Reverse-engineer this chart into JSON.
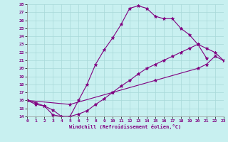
{
  "xlabel": "Windchill (Refroidissement éolien,°C)",
  "bg_color": "#c8f0f0",
  "line_color": "#800080",
  "grid_color": "#a8d8d8",
  "xmin": 0,
  "xmax": 23,
  "ymin": 14,
  "ymax": 28,
  "line1_x": [
    0,
    1,
    2,
    3,
    4,
    5,
    6,
    7,
    8,
    9,
    10,
    11,
    12,
    13,
    14,
    15,
    16,
    17,
    18,
    19,
    20,
    21
  ],
  "line1_y": [
    16.0,
    15.7,
    15.3,
    14.2,
    14.0,
    14.0,
    16.0,
    18.0,
    20.5,
    22.3,
    23.8,
    25.5,
    27.5,
    27.8,
    27.5,
    26.5,
    26.2,
    26.2,
    25.0,
    24.2,
    23.0,
    21.3
  ],
  "line2_x": [
    0,
    1,
    2,
    3,
    4,
    5,
    6,
    7,
    8,
    9,
    10,
    11,
    12,
    13,
    14,
    15,
    16,
    17,
    18,
    19,
    20,
    21,
    22,
    23
  ],
  "line2_y": [
    16.0,
    15.5,
    15.3,
    14.8,
    14.0,
    14.0,
    14.3,
    14.7,
    15.5,
    16.2,
    17.0,
    17.8,
    18.5,
    19.3,
    20.0,
    20.5,
    21.0,
    21.5,
    22.0,
    22.5,
    23.0,
    22.5,
    22.0,
    21.0
  ],
  "line3_x": [
    0,
    5,
    10,
    15,
    20,
    21,
    22,
    23
  ],
  "line3_y": [
    16.0,
    15.5,
    17.0,
    18.5,
    20.0,
    20.5,
    21.5,
    21.0
  ]
}
